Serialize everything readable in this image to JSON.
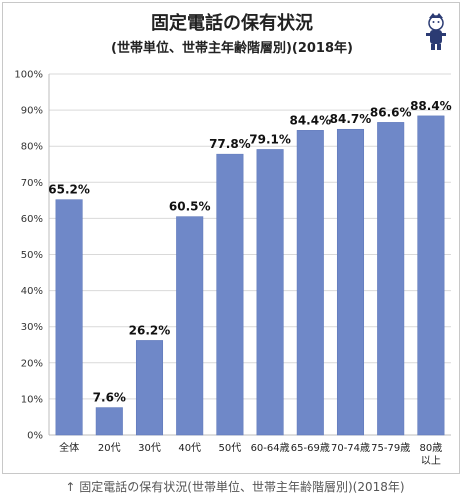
{
  "caption": "↑ 固定電話の保有状況(世帯単位、世帯主年齢階層別)(2018年)",
  "colors": {
    "bar": "#6f88c8",
    "bar_stroke": "#5a74b8",
    "grid": "#d9d9d9",
    "axis": "#bdbdbd"
  },
  "chart_data": {
    "type": "bar",
    "title": "固定電話の保有状況",
    "subtitle": "(世帯単位、世帯主年齢階層別)(2018年)",
    "categories": [
      "全体",
      "20代",
      "30代",
      "40代",
      "50代",
      "60-64歳",
      "65-69歳",
      "70-74歳",
      "75-79歳",
      "80歳\n以上"
    ],
    "values": [
      65.2,
      7.6,
      26.2,
      60.5,
      77.8,
      79.1,
      84.4,
      84.7,
      86.6,
      88.4
    ],
    "data_labels": [
      "65.2%",
      "7.6%",
      "26.2%",
      "60.5%",
      "77.8%",
      "79.1%",
      "84.4%",
      "84.7%",
      "86.6%",
      "88.4%"
    ],
    "y_ticks": [
      "0%",
      "10%",
      "20%",
      "30%",
      "40%",
      "50%",
      "60%",
      "70%",
      "80%",
      "90%",
      "100%"
    ],
    "ylim": [
      0,
      100
    ],
    "grid": true,
    "legend": "none"
  }
}
